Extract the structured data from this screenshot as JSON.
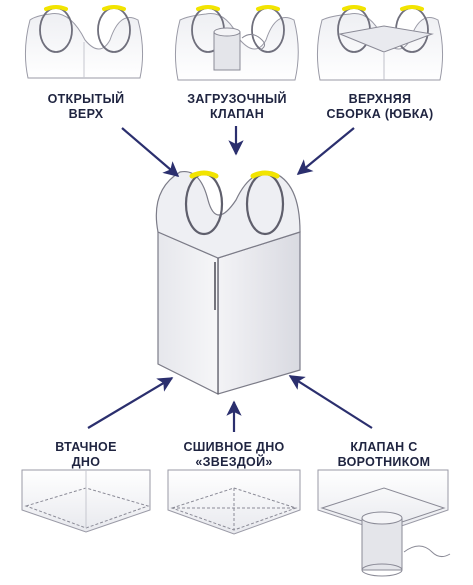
{
  "labels": {
    "open_top": [
      "ОТКРЫТЫЙ",
      "ВЕРХ"
    ],
    "loading_valve": [
      "ЗАГРУЗОЧНЫЙ",
      "КЛАПАН"
    ],
    "top_skirt": [
      "ВЕРХНЯЯ",
      "СБОРКА (ЮБКА)"
    ],
    "sewn_bottom": [
      "ВТАЧНОЕ",
      "ДНО"
    ],
    "star_bottom": [
      "СШИВНОЕ ДНО",
      "«ЗВЕЗДОЙ»"
    ],
    "collar_valve": [
      "КЛАПАН С",
      "ВОРОТНИКОМ"
    ]
  },
  "colors": {
    "arrow": "#2b2f6e",
    "bag_stroke": "#7c7c88",
    "bag_fill": "#eeeff3",
    "bag_shade": "#dcdde3",
    "loop_accent": "#f2e400",
    "label_text": "#1f2440"
  }
}
